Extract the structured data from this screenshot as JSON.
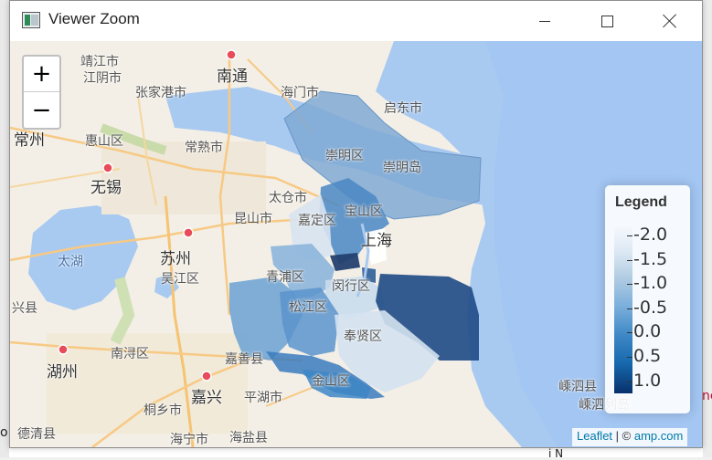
{
  "window": {
    "title": "Viewer Zoom"
  },
  "map": {
    "zoom_in_label": "+",
    "zoom_out_label": "−",
    "labels": [
      {
        "text": "靖江市"
      },
      {
        "text": "江阴市"
      },
      {
        "text": "南通"
      },
      {
        "text": "张家港市"
      },
      {
        "text": "海门市"
      },
      {
        "text": "启东市"
      },
      {
        "text": "常州"
      },
      {
        "text": "惠山区"
      },
      {
        "text": "常熟市"
      },
      {
        "text": "崇明区"
      },
      {
        "text": "崇明岛"
      },
      {
        "text": "无锡"
      },
      {
        "text": "太仓市"
      },
      {
        "text": "宝山区"
      },
      {
        "text": "昆山市"
      },
      {
        "text": "嘉定区"
      },
      {
        "text": "上海"
      },
      {
        "text": "太湖"
      },
      {
        "text": "苏州"
      },
      {
        "text": "吴江区"
      },
      {
        "text": "青浦区"
      },
      {
        "text": "闵行区"
      },
      {
        "text": "松江区"
      },
      {
        "text": "奉贤区"
      },
      {
        "text": "南浔区"
      },
      {
        "text": "嘉善县"
      },
      {
        "text": "湖州"
      },
      {
        "text": "金山区"
      },
      {
        "text": "嘉兴"
      },
      {
        "text": "平湖市"
      },
      {
        "text": "桐乡市"
      },
      {
        "text": "海宁市"
      },
      {
        "text": "海盐县"
      },
      {
        "text": "德清县"
      },
      {
        "text": "嵊泗县"
      },
      {
        "text": "嵊泗列岛"
      },
      {
        "text": "兴县"
      }
    ]
  },
  "legend": {
    "title": "Legend",
    "ticks": [
      "-2.0",
      "-1.5",
      "-1.0",
      "-0.5",
      "0.0",
      "0.5",
      "1.0"
    ]
  },
  "attribution": {
    "leaflet": "Leaflet",
    "separator": " | © ",
    "source": "amp.com"
  },
  "background": {
    "left_text": "o",
    "right_text": "ne",
    "bottom_text": "i  N"
  }
}
